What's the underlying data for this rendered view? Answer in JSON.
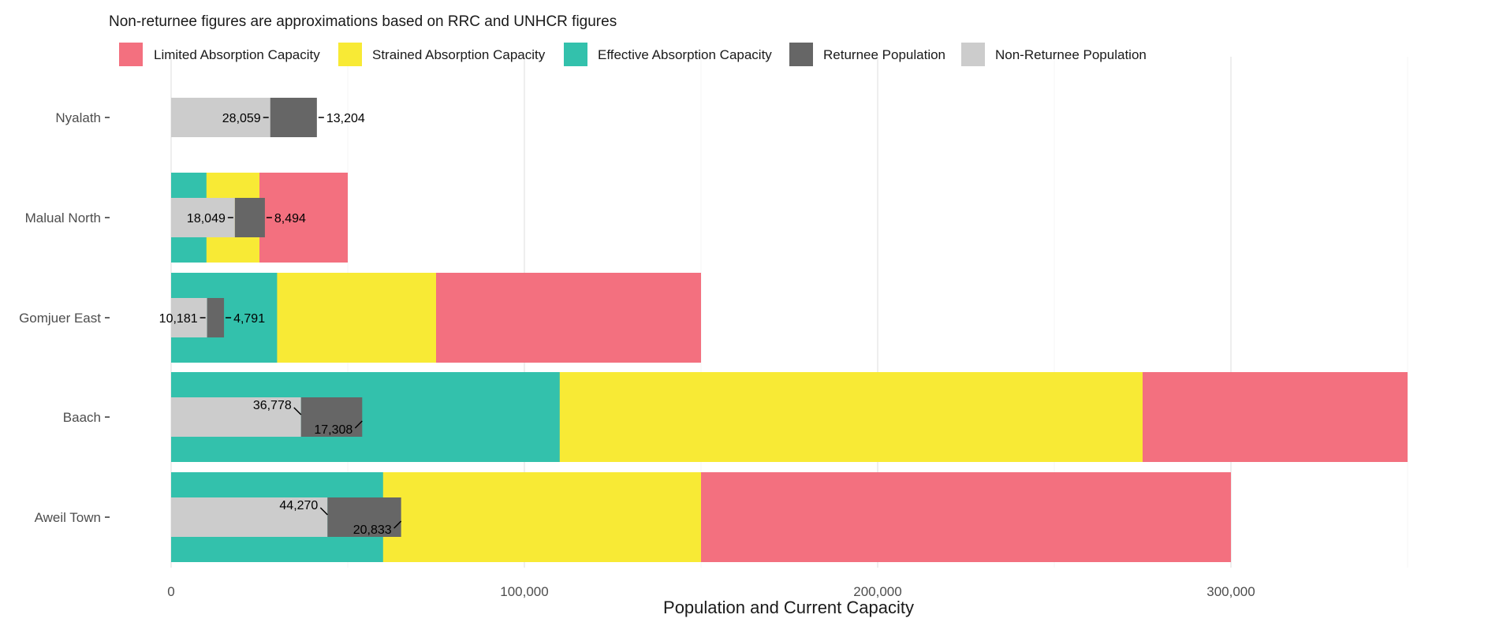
{
  "chart_data": {
    "type": "bar",
    "orientation": "horizontal",
    "subtitle": "Non-returnee figures are approximations based on RRC and UNHCR figures",
    "xlabel": "Population and Current Capacity",
    "ylabel": "",
    "xlim": [
      0,
      350000
    ],
    "x_ticks": [
      0,
      100000,
      200000,
      300000
    ],
    "x_tick_labels": [
      "0",
      "100,000",
      "200,000",
      "300,000"
    ],
    "grid": "vertical",
    "legend_position": "top-left",
    "legend": [
      {
        "key": "limited",
        "label": "Limited Absorption Capacity",
        "color": "#F3707F"
      },
      {
        "key": "strained",
        "label": "Strained Absorption Capacity",
        "color": "#F8EA35"
      },
      {
        "key": "effective",
        "label": "Effective Absorption Capacity",
        "color": "#33C1AC"
      },
      {
        "key": "returnee",
        "label": "Returnee Population",
        "color": "#666666"
      },
      {
        "key": "non_returnee",
        "label": "Non-Returnee Population",
        "color": "#CCCCCC"
      }
    ],
    "categories": [
      "Nyalath",
      "Malual North",
      "Gomjuer East",
      "Baach",
      "Aweil Town"
    ],
    "capacity": {
      "effective": [
        null,
        10000,
        30000,
        110000,
        60000
      ],
      "strained": [
        null,
        25000,
        75000,
        275000,
        150000
      ],
      "limited": [
        null,
        50000,
        150000,
        350000,
        300000
      ]
    },
    "population": {
      "non_returnee": [
        28059,
        18049,
        10181,
        36778,
        44270
      ],
      "returnee": [
        13204,
        8494,
        4791,
        17308,
        20833
      ]
    },
    "data_labels": {
      "non_returnee": [
        "28,059",
        "18,049",
        "10,181",
        "36,778",
        "44,270"
      ],
      "returnee": [
        "13,204",
        "8,494",
        "4,791",
        "17,308",
        "20,833"
      ]
    }
  }
}
